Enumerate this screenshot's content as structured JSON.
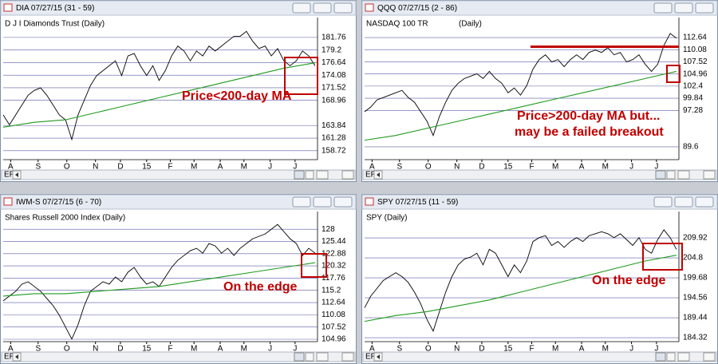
{
  "chart_data": [
    {
      "type": "line",
      "title": "DIA 07/27/15 (31 - 59)",
      "subtitle": "D J I Diamonds Trust (Daily)",
      "scroll_label": "ER",
      "xlim": [
        0,
        252
      ],
      "ylim": [
        156.9,
        185.8
      ],
      "xticks": [
        {
          "value": 6,
          "label": "A"
        },
        {
          "value": 28,
          "label": "S"
        },
        {
          "value": 51,
          "label": "O"
        },
        {
          "value": 74,
          "label": "N"
        },
        {
          "value": 94,
          "label": "D"
        },
        {
          "value": 115,
          "label": "15"
        },
        {
          "value": 134,
          "label": "F"
        },
        {
          "value": 153,
          "label": "M"
        },
        {
          "value": 174,
          "label": "A"
        },
        {
          "value": 193,
          "label": "M"
        },
        {
          "value": 214,
          "label": "J"
        },
        {
          "value": 234,
          "label": "J"
        }
      ],
      "yticks": [
        181.76,
        179.2,
        176.64,
        174.08,
        171.52,
        168.96,
        163.84,
        161.28,
        158.72
      ],
      "grid": true,
      "series": [
        {
          "color": "#000000",
          "x": [
            0,
            5,
            10,
            15,
            20,
            25,
            30,
            35,
            40,
            45,
            50,
            55,
            60,
            65,
            70,
            75,
            80,
            85,
            90,
            95,
            100,
            105,
            110,
            115,
            120,
            125,
            130,
            135,
            140,
            145,
            150,
            155,
            160,
            165,
            170,
            175,
            180,
            185,
            190,
            195,
            200,
            205,
            210,
            215,
            220,
            225,
            230,
            235,
            240,
            245,
            250
          ],
          "values": [
            166,
            164,
            166,
            168,
            170,
            171,
            171.5,
            170,
            168,
            166,
            165,
            161,
            166,
            169,
            172,
            174,
            175,
            176,
            177,
            174,
            178,
            178.5,
            176,
            174,
            176,
            173,
            175,
            178,
            180,
            179,
            177,
            179,
            178,
            180,
            179,
            180,
            181,
            182,
            182,
            183,
            181,
            179.5,
            180,
            178,
            179.5,
            177,
            176,
            177,
            179,
            178,
            176
          ]
        },
        {
          "color": "#1f9a1f",
          "x": [
            0,
            25,
            50,
            75,
            100,
            125,
            150,
            175,
            200,
            225,
            250
          ],
          "values": [
            163.5,
            164.5,
            165,
            166.5,
            168,
            169.5,
            171,
            172.5,
            174,
            175.5,
            176.6
          ]
        }
      ],
      "annotations": [
        "Price<200-day MA"
      ]
    },
    {
      "type": "line",
      "title": "QQQ 07/27/15 (2 - 86)",
      "subtitle": "NASDAQ 100 TR",
      "subtitle_extra": "(Daily)",
      "scroll_label": "ER",
      "xlim": [
        0,
        252
      ],
      "ylim": [
        86.9,
        116.85
      ],
      "xticks": [
        {
          "value": 6,
          "label": "A"
        },
        {
          "value": 28,
          "label": "S"
        },
        {
          "value": 51,
          "label": "O"
        },
        {
          "value": 74,
          "label": "N"
        },
        {
          "value": 94,
          "label": "D"
        },
        {
          "value": 115,
          "label": "15"
        },
        {
          "value": 134,
          "label": "F"
        },
        {
          "value": 153,
          "label": "M"
        },
        {
          "value": 174,
          "label": "A"
        },
        {
          "value": 193,
          "label": "M"
        },
        {
          "value": 214,
          "label": "J"
        },
        {
          "value": 234,
          "label": "J"
        }
      ],
      "yticks": [
        112.64,
        110.08,
        107.52,
        104.96,
        102.4,
        99.84,
        97.28,
        89.6
      ],
      "grid": true,
      "series": [
        {
          "color": "#000000",
          "x": [
            0,
            5,
            10,
            15,
            20,
            25,
            30,
            35,
            40,
            45,
            50,
            55,
            60,
            65,
            70,
            75,
            80,
            85,
            90,
            95,
            100,
            105,
            110,
            115,
            120,
            125,
            130,
            135,
            140,
            145,
            150,
            155,
            160,
            165,
            170,
            175,
            180,
            185,
            190,
            195,
            200,
            205,
            210,
            215,
            220,
            225,
            230,
            235,
            240,
            245,
            250
          ],
          "values": [
            97,
            98,
            99.5,
            100,
            100.5,
            101,
            101.5,
            100,
            99,
            97,
            95,
            92,
            96,
            99,
            101.5,
            103,
            104,
            104.5,
            105,
            104,
            105.5,
            104,
            103,
            101,
            102,
            100.5,
            102.5,
            106,
            108,
            109,
            107.5,
            108,
            106.5,
            108,
            109,
            108,
            109.5,
            110,
            109.5,
            110.5,
            109,
            109.5,
            107.5,
            108,
            109,
            107,
            105.5,
            107,
            111,
            113.5,
            112.5
          ]
        },
        {
          "color": "#1f9a1f",
          "x": [
            0,
            25,
            50,
            75,
            100,
            125,
            150,
            175,
            200,
            225,
            250
          ],
          "values": [
            91,
            92,
            93.5,
            95,
            96.5,
            98,
            99.5,
            101,
            102.5,
            104,
            105.5
          ]
        }
      ],
      "reference_line": {
        "value": 110.7,
        "color": "#c00000"
      },
      "annotations": [
        "Price>200-day MA but...",
        "may be a failed breakout"
      ]
    },
    {
      "type": "line",
      "title": "IWM-S 07/27/15 (6 - 70)",
      "subtitle": "Shares Russell 2000 Index (Daily)",
      "scroll_label": "ER",
      "xlim": [
        0,
        252
      ],
      "ylim": [
        104.46,
        131.7
      ],
      "xticks": [
        {
          "value": 6,
          "label": "A"
        },
        {
          "value": 28,
          "label": "S"
        },
        {
          "value": 51,
          "label": "O"
        },
        {
          "value": 74,
          "label": "N"
        },
        {
          "value": 94,
          "label": "D"
        },
        {
          "value": 115,
          "label": "15"
        },
        {
          "value": 134,
          "label": "F"
        },
        {
          "value": 153,
          "label": "M"
        },
        {
          "value": 174,
          "label": "A"
        },
        {
          "value": 193,
          "label": "M"
        },
        {
          "value": 214,
          "label": "J"
        },
        {
          "value": 234,
          "label": "J"
        }
      ],
      "yticks": [
        128,
        125.44,
        122.88,
        120.32,
        117.76,
        115.2,
        112.64,
        110.08,
        107.52,
        104.96
      ],
      "grid": true,
      "series": [
        {
          "color": "#000000",
          "x": [
            0,
            5,
            10,
            15,
            20,
            25,
            30,
            35,
            40,
            45,
            50,
            55,
            60,
            65,
            70,
            75,
            80,
            85,
            90,
            95,
            100,
            105,
            110,
            115,
            120,
            125,
            130,
            135,
            140,
            145,
            150,
            155,
            160,
            165,
            170,
            175,
            180,
            185,
            190,
            195,
            200,
            205,
            210,
            215,
            220,
            225,
            230,
            235,
            240,
            245,
            250
          ],
          "values": [
            113,
            114,
            115,
            116.5,
            117,
            116,
            115,
            113.5,
            112,
            110,
            107.5,
            105,
            108,
            112,
            115,
            116,
            117,
            116.5,
            118,
            117,
            119,
            120,
            118,
            116.5,
            117,
            116,
            118,
            120,
            121.5,
            122.5,
            123.5,
            124,
            123,
            125,
            124.5,
            123,
            124,
            122.5,
            124,
            125,
            126,
            126.5,
            127,
            128,
            129,
            127.5,
            126,
            125,
            122.5,
            124,
            123
          ]
        },
        {
          "color": "#1f9a1f",
          "x": [
            0,
            25,
            50,
            75,
            100,
            125,
            150,
            175,
            200,
            225,
            250
          ],
          "values": [
            114,
            114.5,
            114.5,
            115,
            115.5,
            116,
            117,
            118,
            119,
            120,
            121
          ]
        }
      ],
      "annotations": [
        "On the edge"
      ]
    },
    {
      "type": "line",
      "title": "SPY 07/27/15 (11 - 59)",
      "subtitle": "SPY (Daily)",
      "scroll_label": "ER",
      "xlim": [
        0,
        252
      ],
      "ylim": [
        183.3,
        216.7
      ],
      "xticks": [
        {
          "value": 6,
          "label": "A"
        },
        {
          "value": 28,
          "label": "S"
        },
        {
          "value": 51,
          "label": "O"
        },
        {
          "value": 74,
          "label": "N"
        },
        {
          "value": 94,
          "label": "D"
        },
        {
          "value": 115,
          "label": "15"
        },
        {
          "value": 134,
          "label": "F"
        },
        {
          "value": 153,
          "label": "M"
        },
        {
          "value": 174,
          "label": "A"
        },
        {
          "value": 193,
          "label": "M"
        },
        {
          "value": 214,
          "label": "J"
        },
        {
          "value": 234,
          "label": "J"
        }
      ],
      "yticks": [
        209.92,
        204.8,
        199.68,
        194.56,
        189.44,
        184.32
      ],
      "grid": true,
      "series": [
        {
          "color": "#000000",
          "x": [
            0,
            5,
            10,
            15,
            20,
            25,
            30,
            35,
            40,
            45,
            50,
            55,
            60,
            65,
            70,
            75,
            80,
            85,
            90,
            95,
            100,
            105,
            110,
            115,
            120,
            125,
            130,
            135,
            140,
            145,
            150,
            155,
            160,
            165,
            170,
            175,
            180,
            185,
            190,
            195,
            200,
            205,
            210,
            215,
            220,
            225,
            230,
            235,
            240,
            245,
            250
          ],
          "values": [
            192,
            195,
            197,
            199,
            200,
            201,
            200,
            198.5,
            196,
            193,
            189,
            186,
            191,
            196,
            200,
            203,
            204.5,
            205,
            206,
            203,
            207,
            206,
            203,
            200,
            203,
            201,
            204,
            209,
            210,
            210.5,
            208,
            209,
            207.5,
            209,
            210,
            209,
            210.5,
            211,
            211.5,
            211,
            210,
            211,
            209.5,
            208,
            210,
            207,
            206,
            209.5,
            212,
            210,
            207
          ]
        },
        {
          "color": "#1f9a1f",
          "x": [
            0,
            25,
            50,
            75,
            100,
            125,
            150,
            175,
            200,
            225,
            250
          ],
          "values": [
            188.5,
            190,
            191,
            192.5,
            194,
            196,
            198,
            200,
            202,
            204,
            205.5
          ]
        }
      ],
      "annotations": [
        "On the edge"
      ]
    }
  ]
}
